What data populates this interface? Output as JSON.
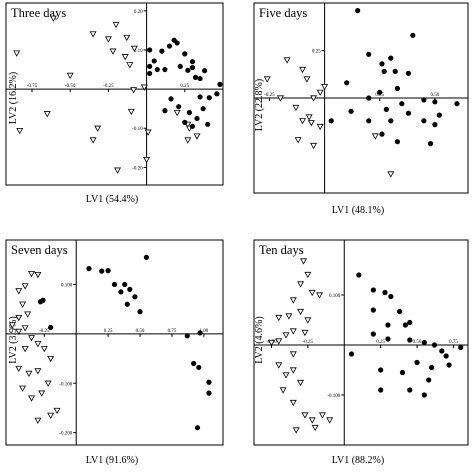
{
  "chart_data": [
    {
      "type": "scatter",
      "title": "Three days",
      "xlabel": "LV1 (54.4%)",
      "ylabel": "LV2 (16.2%)",
      "xlim": [
        -0.92,
        0.5
      ],
      "ylim": [
        -0.245,
        0.22
      ],
      "x_ticks": [
        {
          "v": -0.75,
          "label": "-0.75"
        },
        {
          "v": -0.5,
          "label": "-0.50"
        },
        {
          "v": -0.25,
          "label": "-0.25"
        },
        {
          "v": 0.25,
          "label": "0.25"
        }
      ],
      "y_ticks": [
        {
          "v": 0.2,
          "label": "0.20"
        },
        {
          "v": 0.1,
          "label": "0.10"
        },
        {
          "v": -0.1,
          "label": "-0.10"
        },
        {
          "v": -0.2,
          "label": "-0.20"
        }
      ],
      "series": [
        {
          "marker": "triangle-down-open",
          "points": [
            [
              -0.85,
              0.092
            ],
            [
              -0.61,
              0.181
            ],
            [
              -0.5,
              0.035
            ],
            [
              -0.35,
              0.141
            ],
            [
              -0.2,
              0.165
            ],
            [
              -0.25,
              0.128
            ],
            [
              -0.22,
              0.097
            ],
            [
              -0.13,
              0.132
            ],
            [
              -0.14,
              0.083
            ],
            [
              -0.11,
              0.062
            ],
            [
              -0.08,
              0.104
            ],
            [
              -0.015,
              0.005
            ],
            [
              -0.085,
              -0.002
            ],
            [
              -0.65,
              -0.063
            ],
            [
              -0.83,
              -0.106
            ],
            [
              -0.35,
              -0.13
            ],
            [
              -0.1,
              -0.057
            ],
            [
              -0.32,
              -0.1
            ],
            [
              -0.19,
              -0.207
            ],
            [
              0.0,
              -0.18
            ],
            [
              0.01,
              -0.11
            ],
            [
              0.2,
              -0.06
            ],
            [
              0.27,
              -0.09
            ],
            [
              0.28,
              -0.1
            ],
            [
              0.33,
              -0.12
            ],
            [
              0.27,
              -0.13
            ]
          ]
        },
        {
          "marker": "circle-filled",
          "points": [
            [
              0.02,
              0.1
            ],
            [
              0.02,
              0.058
            ],
            [
              0.02,
              0.04
            ],
            [
              0.05,
              0.072
            ],
            [
              0.1,
              0.097
            ],
            [
              0.15,
              0.11
            ],
            [
              0.18,
              0.125
            ],
            [
              0.2,
              0.118
            ],
            [
              0.25,
              0.09
            ],
            [
              0.07,
              0.05
            ],
            [
              0.12,
              0.05
            ],
            [
              0.22,
              0.058
            ],
            [
              0.27,
              0.048
            ],
            [
              0.3,
              0.055
            ],
            [
              0.3,
              0.07
            ],
            [
              0.32,
              0.03
            ],
            [
              0.35,
              0.027
            ],
            [
              0.38,
              0.047
            ],
            [
              0.48,
              0.012
            ],
            [
              0.35,
              -0.02
            ],
            [
              0.46,
              -0.012
            ],
            [
              0.16,
              -0.025
            ],
            [
              0.21,
              -0.045
            ],
            [
              0.28,
              -0.06
            ],
            [
              0.33,
              -0.075
            ],
            [
              0.37,
              -0.05
            ],
            [
              0.41,
              -0.022
            ],
            [
              0.12,
              -0.055
            ],
            [
              0.25,
              -0.085
            ],
            [
              0.3,
              -0.095
            ],
            [
              0.4,
              -0.09
            ]
          ]
        }
      ]
    },
    {
      "type": "scatter",
      "title": "Five days",
      "xlabel": "LV1 (48.1%)",
      "ylabel": "LV2 (22.8%)",
      "xlim": [
        -0.32,
        0.65
      ],
      "ylim": [
        -0.5,
        0.5
      ],
      "x_ticks": [
        {
          "v": -0.25,
          "label": "-0.25"
        },
        {
          "v": 0.25,
          "label": "0.25"
        },
        {
          "v": 0.5,
          "label": "0.50"
        }
      ],
      "y_ticks": [
        {
          "v": 0.25,
          "label": "0.25"
        }
      ],
      "series": [
        {
          "marker": "triangle-down-open",
          "points": [
            [
              -0.26,
              0.1
            ],
            [
              -0.2,
              0.0
            ],
            [
              -0.17,
              0.2
            ],
            [
              -0.13,
              -0.05
            ],
            [
              -0.1,
              0.15
            ],
            [
              -0.08,
              0.1
            ],
            [
              -0.05,
              0.0
            ],
            [
              -0.07,
              -0.1
            ],
            [
              -0.1,
              -0.12
            ],
            [
              -0.06,
              -0.13
            ],
            [
              -0.02,
              0.03
            ],
            [
              -0.12,
              -0.22
            ],
            [
              -0.05,
              -0.25
            ],
            [
              -0.02,
              -0.15
            ],
            [
              0.0,
              0.06
            ],
            [
              0.23,
              -0.2
            ],
            [
              0.3,
              -0.4
            ]
          ]
        },
        {
          "marker": "circle-filled",
          "points": [
            [
              0.15,
              0.46
            ],
            [
              0.4,
              0.33
            ],
            [
              0.26,
              0.18
            ],
            [
              0.2,
              0.23
            ],
            [
              0.3,
              0.21
            ],
            [
              0.27,
              0.14
            ],
            [
              0.32,
              0.14
            ],
            [
              0.33,
              0.05
            ],
            [
              0.38,
              0.13
            ],
            [
              0.25,
              0.03
            ],
            [
              0.1,
              0.08
            ],
            [
              0.2,
              0.0
            ],
            [
              0.35,
              -0.03
            ],
            [
              0.45,
              -0.01
            ],
            [
              0.5,
              -0.02
            ],
            [
              0.3,
              -0.12
            ],
            [
              0.12,
              -0.07
            ],
            [
              0.2,
              -0.12
            ],
            [
              0.52,
              -0.09
            ],
            [
              0.6,
              -0.03
            ],
            [
              0.45,
              -0.12
            ],
            [
              0.38,
              -0.08
            ],
            [
              0.28,
              -0.06
            ],
            [
              0.03,
              -0.12
            ],
            [
              0.26,
              -0.19
            ],
            [
              0.33,
              -0.23
            ],
            [
              0.5,
              -0.14
            ],
            [
              0.48,
              -0.24
            ]
          ]
        }
      ]
    },
    {
      "type": "scatter",
      "title": "Seven days",
      "xlabel": "LV1 (91.6%)",
      "ylabel": "LV2 (3.9%)",
      "xlim": [
        -0.55,
        1.15
      ],
      "ylim": [
        -0.225,
        0.19
      ],
      "x_ticks": [
        {
          "v": -0.25,
          "label": "-0.25"
        },
        {
          "v": 0.25,
          "label": "0.25"
        },
        {
          "v": 0.5,
          "label": "0.50"
        },
        {
          "v": 0.75,
          "label": "0.75"
        },
        {
          "v": 1.0,
          "label": "1.00"
        }
      ],
      "y_ticks": [
        {
          "v": 0.1,
          "label": "0.100"
        },
        {
          "v": -0.1,
          "label": "-0.100"
        },
        {
          "v": -0.2,
          "label": "-0.200"
        }
      ],
      "series": [
        {
          "marker": "triangle-down-open",
          "points": [
            [
              -0.45,
              0.087
            ],
            [
              -0.4,
              0.097
            ],
            [
              -0.35,
              0.122
            ],
            [
              -0.3,
              0.12
            ],
            [
              -0.42,
              0.06
            ],
            [
              -0.38,
              0.04
            ],
            [
              -0.45,
              0.033
            ],
            [
              -0.4,
              0.012
            ],
            [
              -0.45,
              0.005
            ],
            [
              -0.5,
              0.018
            ],
            [
              -0.35,
              -0.008
            ],
            [
              -0.3,
              -0.02
            ],
            [
              -0.25,
              -0.03
            ],
            [
              -0.4,
              -0.03
            ],
            [
              -0.45,
              -0.07
            ],
            [
              -0.37,
              -0.08
            ],
            [
              -0.3,
              -0.075
            ],
            [
              -0.2,
              -0.05
            ],
            [
              -0.42,
              -0.11
            ],
            [
              -0.35,
              -0.13
            ],
            [
              -0.22,
              -0.1
            ],
            [
              -0.27,
              -0.12
            ],
            [
              -0.3,
              -0.175
            ],
            [
              -0.2,
              -0.165
            ],
            [
              -0.15,
              -0.155
            ]
          ]
        },
        {
          "marker": "circle-filled",
          "points": [
            [
              -0.28,
              0.065
            ],
            [
              -0.26,
              0.068
            ],
            [
              -0.2,
              0.013
            ],
            [
              0.1,
              0.132
            ],
            [
              0.2,
              0.127
            ],
            [
              0.25,
              0.128
            ],
            [
              0.3,
              0.1
            ],
            [
              0.38,
              0.1
            ],
            [
              0.42,
              0.09
            ],
            [
              0.35,
              0.085
            ],
            [
              0.55,
              0.155
            ],
            [
              0.46,
              0.075
            ],
            [
              0.4,
              0.06
            ],
            [
              0.5,
              0.045
            ],
            [
              0.87,
              -0.004
            ],
            [
              0.97,
              0.002
            ],
            [
              0.92,
              -0.06
            ],
            [
              0.96,
              -0.068
            ],
            [
              1.04,
              -0.098
            ],
            [
              1.04,
              -0.12
            ],
            [
              0.95,
              -0.19
            ]
          ]
        }
      ]
    },
    {
      "type": "scatter",
      "title": "Ten days",
      "xlabel": "LV1 (88.2%)",
      "ylabel": "LV2 (4.6%)",
      "xlim": [
        -0.62,
        0.85
      ],
      "ylim": [
        -0.2,
        0.21
      ],
      "x_ticks": [
        {
          "v": -0.5,
          "label": "-0.50"
        },
        {
          "v": -0.25,
          "label": "-0.25"
        },
        {
          "v": 0.25,
          "label": "0.25"
        },
        {
          "v": 0.5,
          "label": "0.50"
        },
        {
          "v": 0.75,
          "label": "0.75"
        }
      ],
      "y_ticks": [
        {
          "v": 0.1,
          "label": "0.100"
        },
        {
          "v": -0.1,
          "label": "-0.100"
        }
      ],
      "series": [
        {
          "marker": "triangle-down-open",
          "points": [
            [
              -0.28,
              0.168
            ],
            [
              -0.25,
              0.141
            ],
            [
              -0.3,
              0.122
            ],
            [
              -0.35,
              0.09
            ],
            [
              -0.22,
              0.105
            ],
            [
              -0.17,
              0.1
            ],
            [
              -0.45,
              0.055
            ],
            [
              -0.38,
              0.058
            ],
            [
              -0.3,
              0.067
            ],
            [
              -0.25,
              0.05
            ],
            [
              -0.35,
              0.028
            ],
            [
              -0.27,
              0.025
            ],
            [
              -0.4,
              0.02
            ],
            [
              -0.45,
              0.008
            ],
            [
              -0.5,
              0.005
            ],
            [
              -0.35,
              -0.018
            ],
            [
              -0.45,
              -0.04
            ],
            [
              -0.35,
              -0.05
            ],
            [
              -0.4,
              -0.06
            ],
            [
              -0.3,
              -0.075
            ],
            [
              -0.42,
              -0.09
            ],
            [
              -0.35,
              -0.115
            ],
            [
              -0.27,
              -0.14
            ],
            [
              -0.22,
              -0.15
            ],
            [
              -0.15,
              -0.14
            ],
            [
              -0.1,
              -0.15
            ],
            [
              -0.2,
              -0.165
            ],
            [
              -0.33,
              -0.17
            ]
          ]
        },
        {
          "marker": "circle-filled",
          "points": [
            [
              0.1,
              0.14
            ],
            [
              0.2,
              0.11
            ],
            [
              0.28,
              0.105
            ],
            [
              0.32,
              0.097
            ],
            [
              0.38,
              0.067
            ],
            [
              0.2,
              0.07
            ],
            [
              0.3,
              0.04
            ],
            [
              0.42,
              0.04
            ],
            [
              0.45,
              0.045
            ],
            [
              0.2,
              0.022
            ],
            [
              0.3,
              0.012
            ],
            [
              0.45,
              0.01
            ],
            [
              0.55,
              0.005
            ],
            [
              0.62,
              0.0
            ],
            [
              0.67,
              -0.012
            ],
            [
              0.7,
              -0.022
            ],
            [
              0.8,
              -0.005
            ],
            [
              0.72,
              -0.04
            ],
            [
              0.6,
              -0.045
            ],
            [
              0.5,
              -0.035
            ],
            [
              0.58,
              -0.07
            ],
            [
              0.4,
              -0.055
            ],
            [
              0.25,
              -0.05
            ],
            [
              0.05,
              -0.018
            ],
            [
              0.25,
              -0.09
            ],
            [
              0.55,
              -0.1
            ],
            [
              0.45,
              -0.09
            ]
          ]
        }
      ]
    }
  ]
}
